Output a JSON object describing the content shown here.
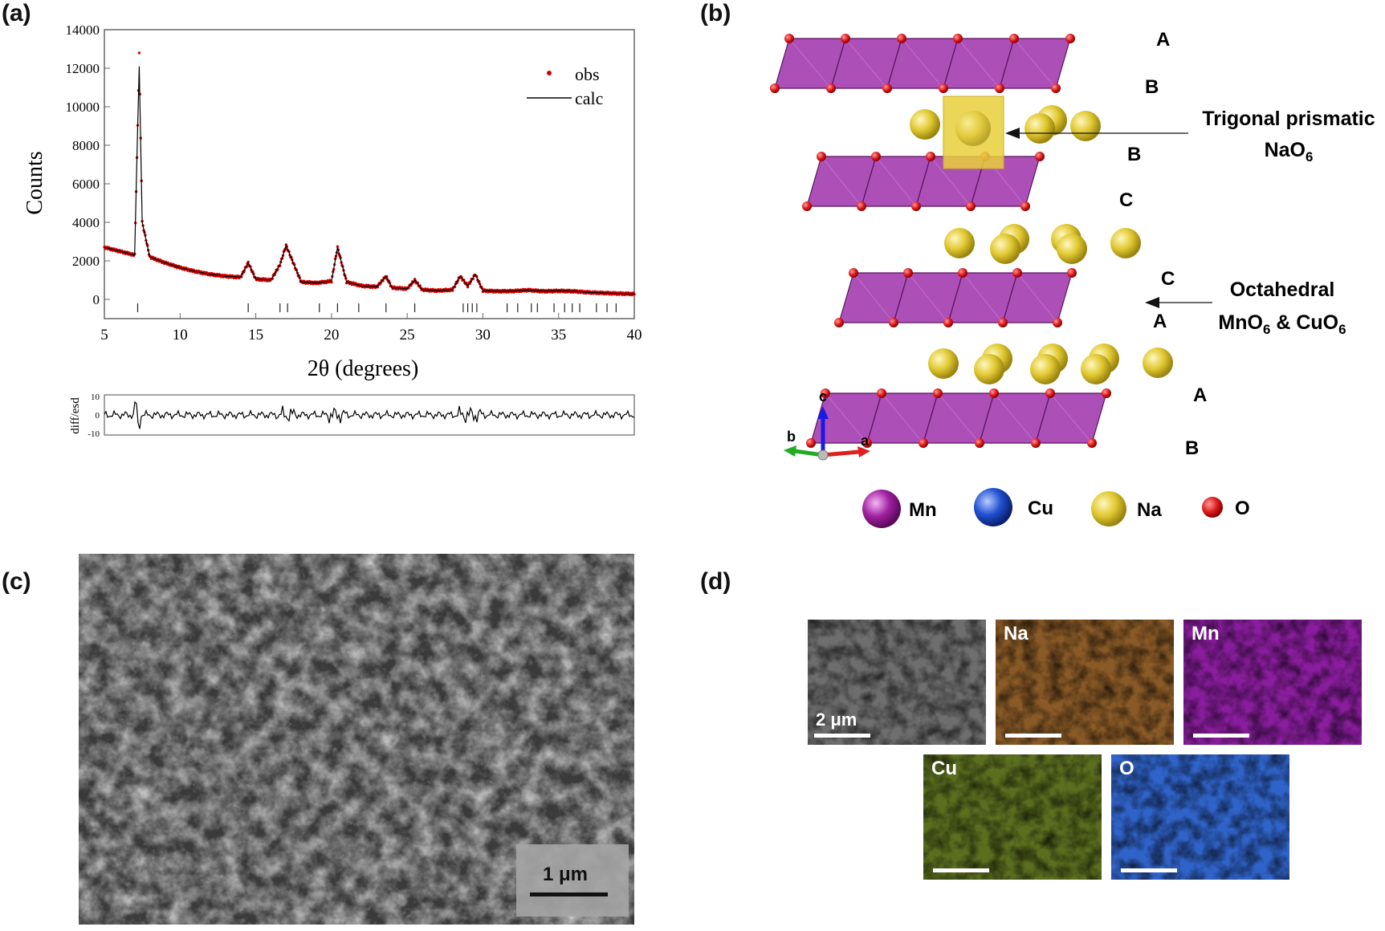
{
  "panels": {
    "a": {
      "label": "(a)"
    },
    "b": {
      "label": "(b)"
    },
    "c": {
      "label": "(c)"
    },
    "d": {
      "label": "(d)"
    }
  },
  "chart_data": [
    {
      "type": "scatter",
      "ylabel": "Counts",
      "xlabel": "2θ (degrees)",
      "xlim": [
        5,
        40
      ],
      "ylim": [
        -1000,
        14000
      ],
      "x_ticks": [
        "5",
        "10",
        "15",
        "20",
        "25",
        "30",
        "35",
        "40"
      ],
      "y_ticks": [
        "0",
        "2000",
        "4000",
        "6000",
        "8000",
        "10000",
        "12000",
        "14000"
      ],
      "legend": {
        "obs": "obs",
        "calc": "calc",
        "placement": "top-right"
      },
      "colors": {
        "obs": "#d40000",
        "calc": "#000000"
      },
      "series": [
        {
          "name": "obs",
          "x": [
            5,
            6,
            7,
            7.2,
            7.3,
            7.5,
            8,
            9,
            10,
            11,
            12,
            13,
            14,
            14.5,
            15,
            16,
            16.6,
            17,
            18,
            19,
            20,
            20.4,
            21,
            22,
            23,
            23.6,
            24,
            25,
            25.5,
            26,
            27,
            28,
            28.5,
            29,
            29.5,
            30,
            31,
            32,
            33,
            34,
            35,
            36,
            37,
            38,
            39,
            40
          ],
          "y": [
            2700,
            2500,
            2300,
            9000,
            12800,
            4000,
            2200,
            1900,
            1650,
            1450,
            1300,
            1200,
            1150,
            1900,
            1050,
            1000,
            1800,
            2800,
            900,
            850,
            950,
            2700,
            900,
            700,
            650,
            1200,
            600,
            550,
            1000,
            500,
            450,
            500,
            1200,
            700,
            1300,
            450,
            420,
            430,
            480,
            420,
            440,
            420,
            360,
            330,
            300,
            280
          ]
        },
        {
          "name": "calc",
          "x": [
            5,
            6,
            7,
            7.2,
            7.3,
            7.5,
            8,
            9,
            10,
            11,
            12,
            13,
            14,
            14.5,
            15,
            16,
            16.6,
            17,
            18,
            19,
            20,
            20.4,
            21,
            22,
            23,
            23.6,
            24,
            25,
            25.5,
            26,
            27,
            28,
            28.5,
            29,
            29.5,
            30,
            31,
            32,
            33,
            34,
            35,
            36,
            37,
            38,
            39,
            40
          ],
          "y": [
            2700,
            2500,
            2300,
            9000,
            12100,
            4000,
            2200,
            1900,
            1650,
            1450,
            1300,
            1200,
            1150,
            1900,
            1050,
            1000,
            1800,
            2800,
            900,
            850,
            950,
            2700,
            900,
            700,
            650,
            1200,
            600,
            550,
            1000,
            500,
            450,
            500,
            1200,
            700,
            1300,
            450,
            420,
            430,
            480,
            420,
            440,
            420,
            360,
            330,
            300,
            280
          ]
        }
      ],
      "bragg_positions": [
        7.2,
        14.5,
        16.6,
        17.1,
        19.2,
        20.4,
        21.8,
        23.6,
        25.5,
        28.7,
        29.0,
        29.3,
        29.6,
        31.6,
        32.3,
        33.2,
        33.6,
        34.7,
        35.4,
        35.9,
        36.4,
        37.5,
        38.2,
        38.8
      ]
    },
    {
      "type": "line",
      "ylabel": "diff/esd",
      "xlim": [
        5,
        40
      ],
      "ylim": [
        -10,
        10
      ],
      "y_ticks": [
        "10",
        "0",
        "-10"
      ]
    }
  ],
  "structure": {
    "stacking_labels": [
      {
        "text": "A",
        "side": "right"
      },
      {
        "text": "B",
        "side": "right"
      },
      {
        "text": "B",
        "side": "right"
      },
      {
        "text": "C",
        "side": "right"
      },
      {
        "text": "C",
        "side": "right"
      },
      {
        "text": "A",
        "side": "right"
      },
      {
        "text": "A",
        "side": "right"
      },
      {
        "text": "B",
        "side": "right"
      }
    ],
    "annotation_prismatic_line1": "Trigonal prismatic",
    "annotation_prismatic_line2": "NaO",
    "annotation_prismatic_sub": "6",
    "annotation_octa_line1": "Octahedral",
    "annotation_octa_p1": "MnO",
    "annotation_octa_sub1": "6",
    "annotation_octa_mid": " & CuO",
    "annotation_octa_sub2": "6",
    "axes": {
      "c": "c",
      "b": "b",
      "a": "a"
    },
    "axis_colors": {
      "c": "#1a1ae6",
      "b": "#22aa22",
      "a": "#dd2020"
    },
    "legend": [
      {
        "label": "Mn",
        "color": "#a020a0"
      },
      {
        "label": "Cu",
        "color": "#2050d0"
      },
      {
        "label": "Na",
        "color": "#d8c020"
      },
      {
        "label": "O",
        "color": "#e02020"
      }
    ],
    "colors": {
      "octahedra": "#9a2aa8",
      "na": "#e0c830",
      "oxygen": "#dd1a1a"
    }
  },
  "sem": {
    "scale_label": "1 μm"
  },
  "eds": {
    "scale_label": "2 μm",
    "maps": [
      {
        "label": "",
        "color": "#6e6e6e"
      },
      {
        "label": "Na",
        "color": "#8a5a26"
      },
      {
        "label": "Mn",
        "color": "#8a1d9e"
      },
      {
        "label": "Cu",
        "color": "#5a6e1e"
      },
      {
        "label": "O",
        "color": "#2f63c9"
      }
    ]
  }
}
